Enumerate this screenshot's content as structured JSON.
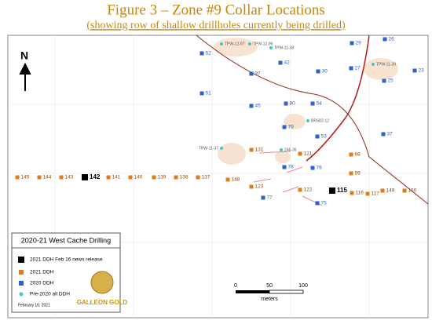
{
  "header": {
    "title": "Figure 3 – Zone #9 Collar Locations",
    "subtitle": "(showing row of shallow drillholes currently being drilled)"
  },
  "map": {
    "north": "N",
    "holes_news": [
      "142",
      "115"
    ],
    "holes_2021": [
      "145",
      "144",
      "143",
      "141",
      "140",
      "139",
      "138",
      "137",
      "148",
      "123",
      "131",
      "121",
      "99",
      "98",
      "122",
      "116",
      "117",
      "149",
      "150"
    ],
    "holes_2020": [
      "52",
      "42",
      "97",
      "30",
      "27",
      "29",
      "26",
      "25",
      "23",
      "51",
      "45",
      "80",
      "54",
      "79",
      "53",
      "37",
      "78",
      "76",
      "77",
      "75"
    ],
    "holes_pre2020": [
      "TPW-12-97",
      "TPW-12-96",
      "TPW-11-38",
      "TPW-11-39",
      "BRS02-12",
      "TPW-11-37",
      "246-36"
    ],
    "scale": {
      "ticks": [
        0,
        50,
        100
      ],
      "unit": "meters"
    }
  },
  "legend": {
    "title": "2020-21 West Cache Drilling",
    "items": [
      {
        "label": "2021 DDH Feb 16 news release",
        "color": "#000000"
      },
      {
        "label": "2021 DDH",
        "color": "#e07b1a"
      },
      {
        "label": "2020 DDH",
        "color": "#2f62c8"
      },
      {
        "label": "Pre-2020 all DDH",
        "color": "#3fc9c0"
      }
    ],
    "date": "February 16, 2021",
    "logo": "GALLEON GOLD"
  }
}
